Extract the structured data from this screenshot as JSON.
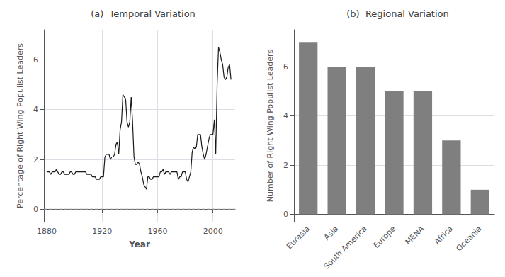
{
  "chart_data": [
    {
      "type": "line",
      "title": "(a)  Temporal Variation",
      "xlabel": "Year",
      "ylabel": "Percentage of Right Wing Populist Leaders",
      "x": [
        1880,
        1881,
        1882,
        1883,
        1884,
        1885,
        1886,
        1887,
        1888,
        1889,
        1890,
        1891,
        1892,
        1893,
        1894,
        1895,
        1896,
        1897,
        1898,
        1899,
        1900,
        1901,
        1902,
        1903,
        1904,
        1905,
        1906,
        1907,
        1908,
        1909,
        1910,
        1911,
        1912,
        1913,
        1914,
        1915,
        1916,
        1917,
        1918,
        1919,
        1920,
        1921,
        1922,
        1923,
        1924,
        1925,
        1926,
        1927,
        1928,
        1929,
        1930,
        1931,
        1932,
        1933,
        1934,
        1935,
        1936,
        1937,
        1938,
        1939,
        1940,
        1941,
        1942,
        1943,
        1944,
        1945,
        1946,
        1947,
        1948,
        1949,
        1950,
        1951,
        1952,
        1953,
        1954,
        1955,
        1956,
        1957,
        1958,
        1959,
        1960,
        1961,
        1962,
        1963,
        1964,
        1965,
        1966,
        1967,
        1968,
        1969,
        1970,
        1971,
        1972,
        1973,
        1974,
        1975,
        1976,
        1977,
        1978,
        1979,
        1980,
        1981,
        1982,
        1983,
        1984,
        1985,
        1986,
        1987,
        1988,
        1989,
        1990,
        1991,
        1992,
        1993,
        1994,
        1995,
        1996,
        1997,
        1998,
        1999,
        2000,
        2001,
        2002,
        2003,
        2004,
        2005,
        2006,
        2007,
        2008,
        2009,
        2010,
        2011,
        2012,
        2013
      ],
      "series": [
        {
          "color": "#1a1a1a",
          "line_style": "solid",
          "values": [
            1.5,
            1.5,
            1.5,
            1.4,
            1.5,
            1.5,
            1.5,
            1.6,
            1.5,
            1.4,
            1.4,
            1.5,
            1.5,
            1.4,
            1.4,
            1.4,
            1.4,
            1.5,
            1.5,
            1.4,
            1.4,
            1.5,
            1.5,
            1.5,
            1.5,
            1.5,
            1.5,
            1.5,
            1.5,
            1.4,
            1.4,
            1.4,
            1.4,
            1.3,
            1.3,
            1.3,
            1.2,
            1.2,
            1.2,
            1.3,
            1.3,
            1.3,
            2.1,
            2.2,
            2.2,
            2.2,
            2.0,
            2.1,
            2.1,
            2.2,
            2.6,
            2.7,
            2.2,
            3.2,
            3.5,
            4.6,
            4.5,
            4.4,
            3.5,
            3.3,
            3.5,
            4.5,
            3.5,
            2.1,
            1.8,
            1.8,
            1.9,
            1.8,
            1.5,
            1.3,
            1.0,
            0.9,
            0.8,
            1.3,
            1.3,
            1.2,
            1.2,
            1.3,
            1.3,
            1.3,
            1.3,
            1.3,
            1.5,
            1.5,
            1.6,
            1.4,
            1.5,
            1.5,
            1.5,
            1.4,
            1.5,
            1.5,
            1.5,
            1.5,
            1.5,
            1.2,
            1.3,
            1.3,
            1.5,
            1.5,
            1.5,
            1.2,
            1.1,
            1.3,
            1.5,
            2.3,
            2.5,
            2.4,
            2.5,
            3.0,
            3.0,
            3.0,
            2.5,
            2.2,
            2.0,
            2.2,
            2.5,
            2.8,
            3.0,
            3.0,
            3.0,
            3.6,
            2.2,
            5.0,
            6.5,
            6.3,
            6.0,
            5.8,
            5.3,
            5.2,
            5.3,
            5.7,
            5.8,
            5.2
          ]
        },
        {
          "color": "#888888",
          "line_style": "dashed",
          "x": [
            1878,
            2016
          ],
          "values": [
            0,
            0
          ]
        }
      ],
      "xlim": [
        1878,
        2016
      ],
      "xticks": [
        1880,
        1920,
        1960,
        2000
      ],
      "ylim": [
        -0.5,
        7.2
      ],
      "yticks": [
        0,
        2,
        4,
        6
      ],
      "grid": true
    },
    {
      "type": "bar",
      "title": "(b)  Regional Variation",
      "ylabel": "Number of Right Wing Populist Leaders",
      "categories": [
        "Eurasia",
        "Asia",
        "South America",
        "Europe",
        "MENA",
        "Africa",
        "Oceania"
      ],
      "values": [
        7,
        6,
        6,
        5,
        5,
        3,
        1
      ],
      "color": "#7f7f7f",
      "ylim": [
        -0.3,
        7.5
      ],
      "yticks": [
        0,
        2,
        4,
        6
      ],
      "grid": "y"
    }
  ]
}
